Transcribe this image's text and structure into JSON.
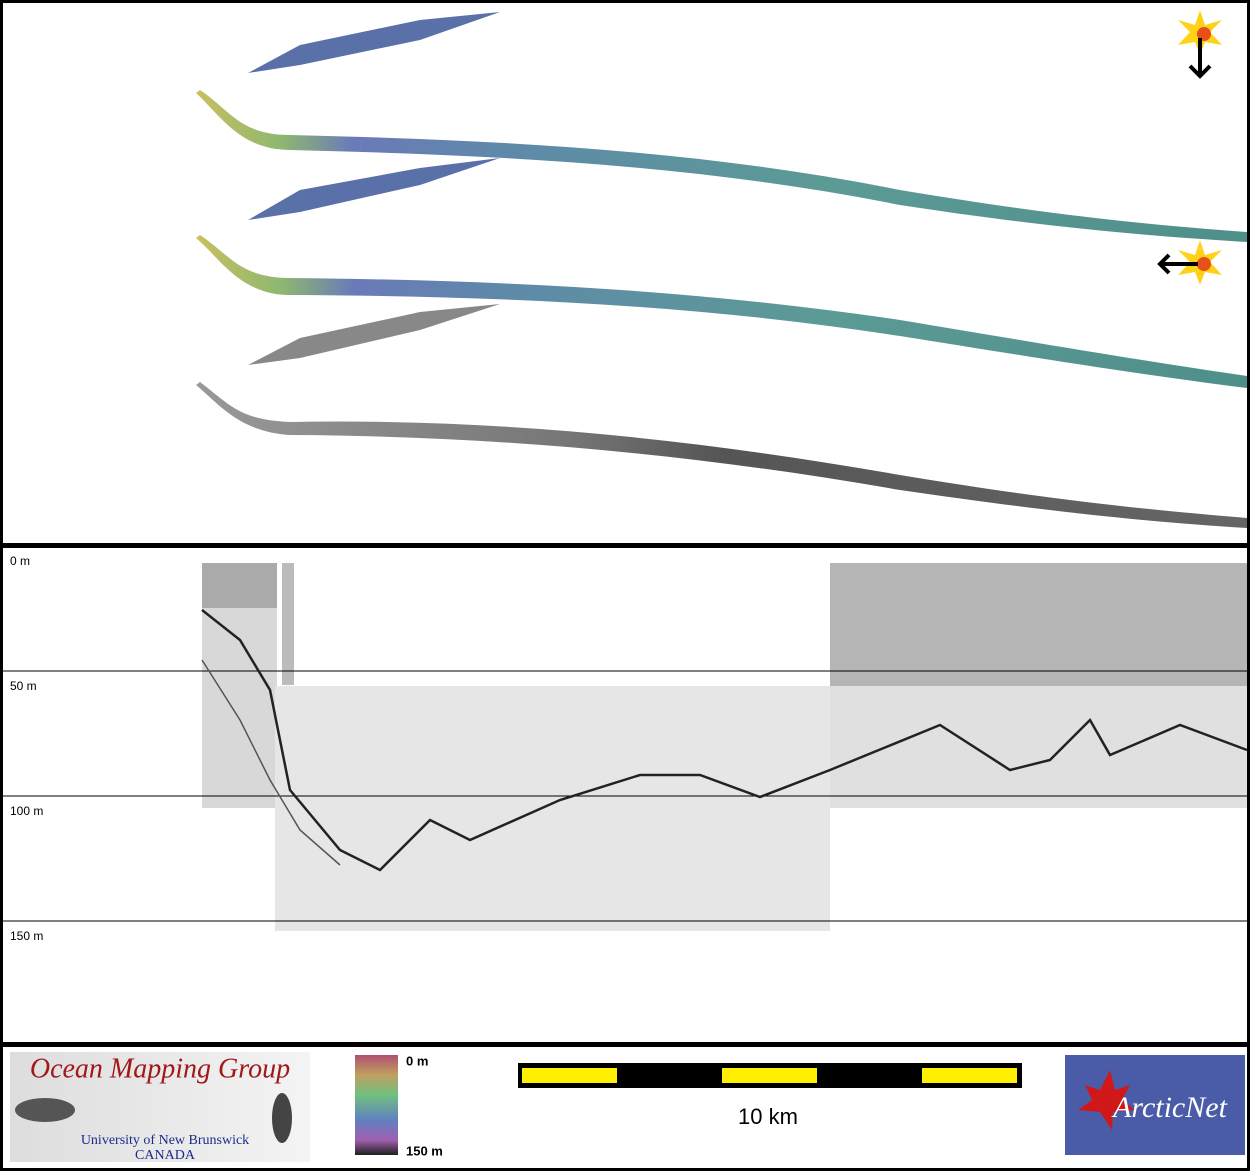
{
  "profile": {
    "depth_labels": [
      "0 m",
      "50 m",
      "100 m",
      "150 m"
    ]
  },
  "footer": {
    "logo": {
      "title": "Ocean Mapping Group",
      "line1": "University of New Brunswick",
      "line2": "CANADA"
    },
    "colorbar": {
      "top_label": "0 m",
      "bottom_label": "150 m"
    },
    "scalebar": {
      "label": "10 km"
    },
    "partner_logo": "ArcticNet"
  }
}
